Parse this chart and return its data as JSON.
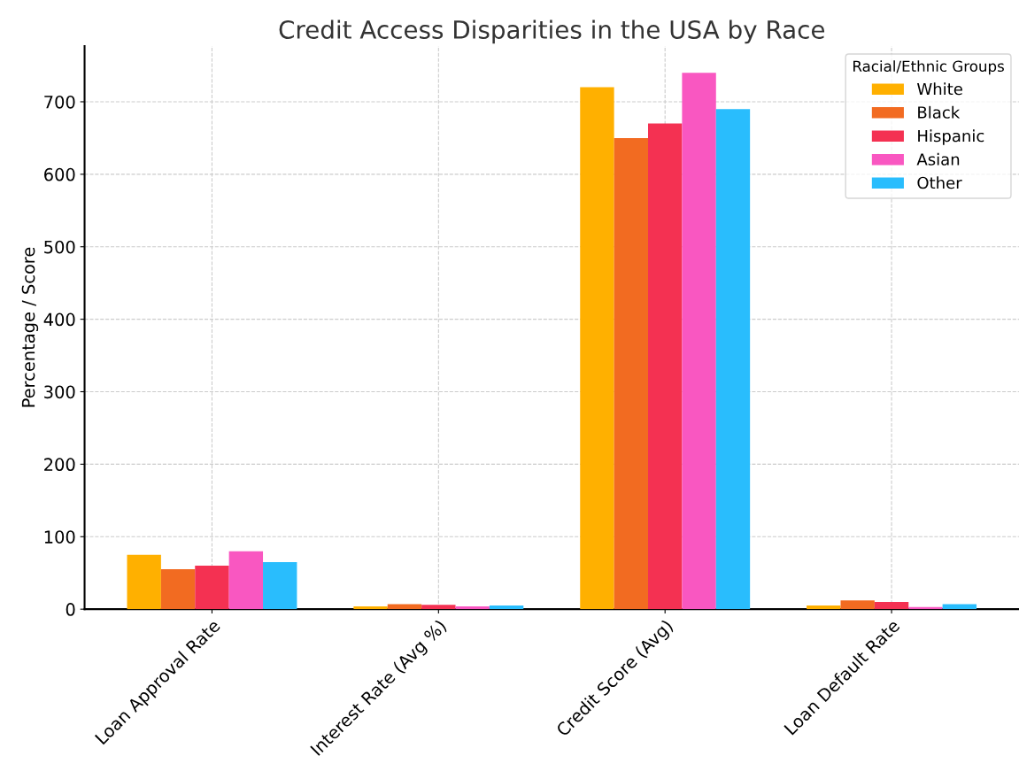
{
  "chart_data": {
    "type": "bar",
    "title": "Credit Access Disparities in the USA by Race",
    "ylabel": "Percentage / Score",
    "legend_title": "Racial/Ethnic Groups",
    "legend": "top right",
    "grid": true,
    "categories": [
      "Loan Approval Rate",
      "Interest Rate (Avg %)",
      "Credit Score (Avg)",
      "Loan Default Rate"
    ],
    "ylim": [
      0,
      777
    ],
    "yticks": [
      0,
      100,
      200,
      300,
      400,
      500,
      600,
      700
    ],
    "series": [
      {
        "name": "White",
        "color": "#ffb000",
        "values": [
          75,
          4,
          720,
          5
        ]
      },
      {
        "name": "Black",
        "color": "#f26b21",
        "values": [
          55,
          7,
          650,
          12
        ]
      },
      {
        "name": "Hispanic",
        "color": "#f43152",
        "values": [
          60,
          6,
          670,
          10
        ]
      },
      {
        "name": "Asian",
        "color": "#f957c1",
        "values": [
          80,
          4,
          740,
          3
        ]
      },
      {
        "name": "Other",
        "color": "#29bdfd",
        "values": [
          65,
          5,
          690,
          7
        ]
      }
    ]
  }
}
